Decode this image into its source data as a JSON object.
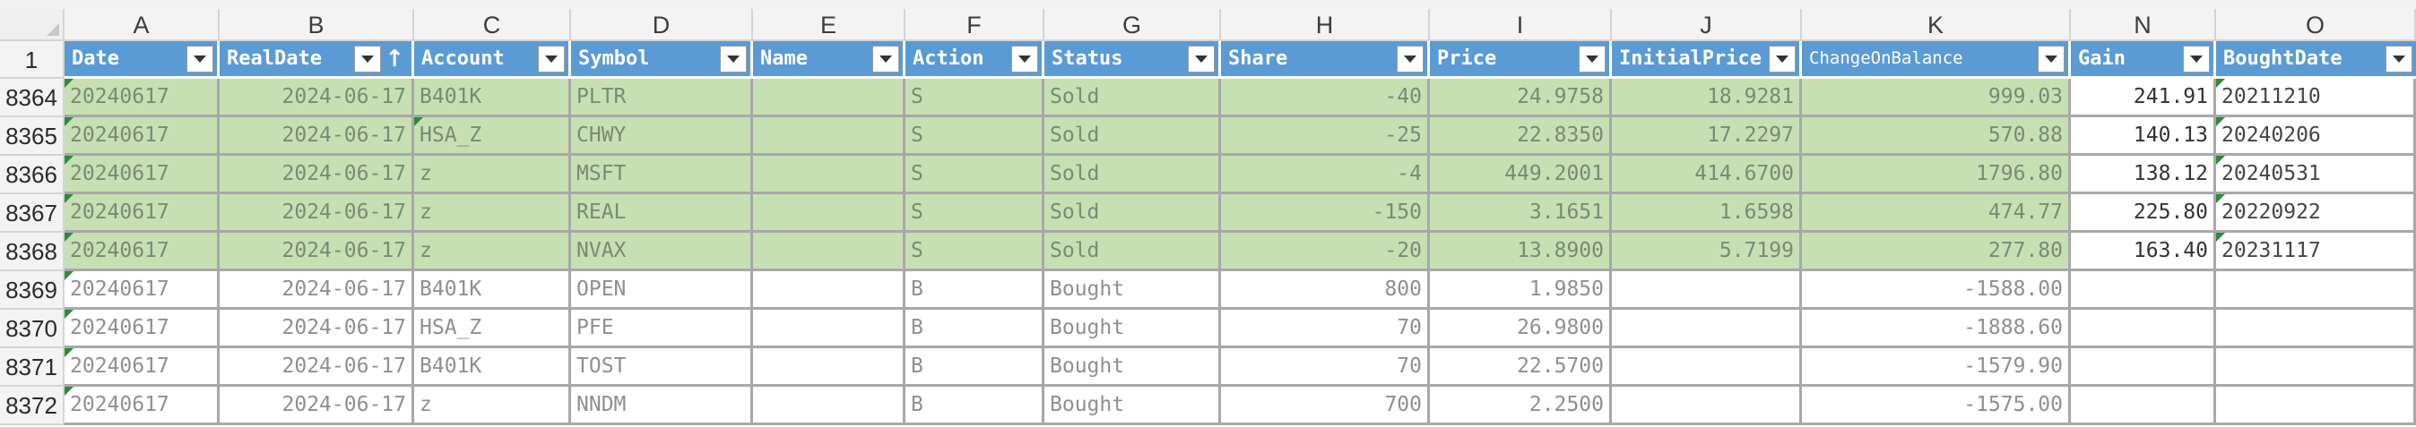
{
  "sheet": {
    "columns": [
      "A",
      "B",
      "C",
      "D",
      "E",
      "F",
      "G",
      "H",
      "I",
      "J",
      "K",
      "N",
      "O"
    ],
    "header_row_number": "1",
    "headers": [
      "Date",
      "RealDate",
      "Account",
      "Symbol",
      "Name",
      "Action",
      "Status",
      "Share",
      "Price",
      "InitialPrice",
      "ChangeOnBalance",
      "Gain",
      "BoughtDate"
    ],
    "sort_indicator": "↑",
    "rows": [
      {
        "num": "8364",
        "cells": [
          "20240617",
          "2024-06-17",
          "B401K",
          "PLTR",
          "",
          "S",
          "Sold",
          "-40",
          "24.9758",
          "18.9281",
          "999.03",
          "241.91",
          "20211210"
        ]
      },
      {
        "num": "8365",
        "cells": [
          "20240617",
          "2024-06-17",
          "HSA_Z",
          "CHWY",
          "",
          "S",
          "Sold",
          "-25",
          "22.8350",
          "17.2297",
          "570.88",
          "140.13",
          "20240206"
        ]
      },
      {
        "num": "8366",
        "cells": [
          "20240617",
          "2024-06-17",
          "z",
          "MSFT",
          "",
          "S",
          "Sold",
          "-4",
          "449.2001",
          "414.6700",
          "1796.80",
          "138.12",
          "20240531"
        ]
      },
      {
        "num": "8367",
        "cells": [
          "20240617",
          "2024-06-17",
          "z",
          "REAL",
          "",
          "S",
          "Sold",
          "-150",
          "3.1651",
          "1.6598",
          "474.77",
          "225.80",
          "20220922"
        ]
      },
      {
        "num": "8368",
        "cells": [
          "20240617",
          "2024-06-17",
          "z",
          "NVAX",
          "",
          "S",
          "Sold",
          "-20",
          "13.8900",
          "5.7199",
          "277.80",
          "163.40",
          "20231117"
        ]
      },
      {
        "num": "8369",
        "cells": [
          "20240617",
          "2024-06-17",
          "B401K",
          "OPEN",
          "",
          "B",
          "Bought",
          "800",
          "1.9850",
          "",
          "-1588.00",
          "",
          ""
        ]
      },
      {
        "num": "8370",
        "cells": [
          "20240617",
          "2024-06-17",
          "HSA_Z",
          "PFE",
          "",
          "B",
          "Bought",
          "70",
          "26.9800",
          "",
          "-1888.60",
          "",
          ""
        ]
      },
      {
        "num": "8371",
        "cells": [
          "20240617",
          "2024-06-17",
          "B401K",
          "TOST",
          "",
          "B",
          "Bought",
          "70",
          "22.5700",
          "",
          "-1579.90",
          "",
          ""
        ]
      },
      {
        "num": "8372",
        "cells": [
          "20240617",
          "2024-06-17",
          "z",
          "NNDM",
          "",
          "B",
          "Bought",
          "700",
          "2.2500",
          "",
          "-1575.00",
          "",
          ""
        ]
      }
    ]
  }
}
